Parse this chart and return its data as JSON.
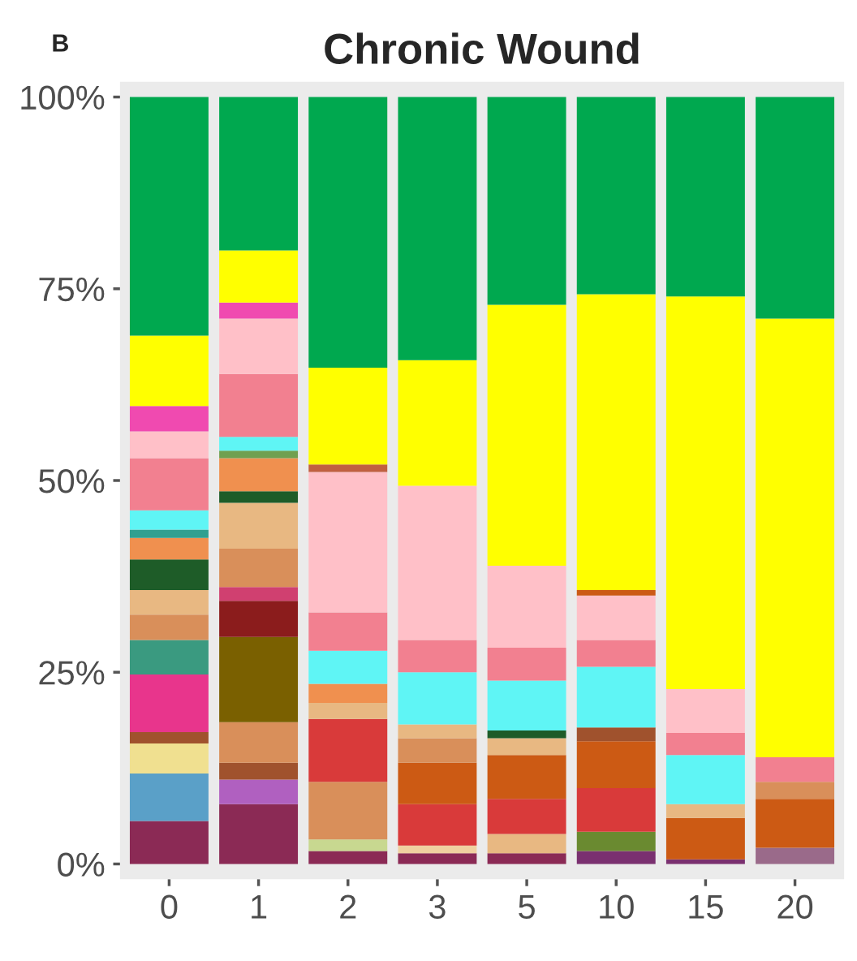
{
  "chart_data": {
    "type": "bar",
    "stacked": true,
    "title": "Chronic Wound",
    "annotations": [
      "B"
    ],
    "categories": [
      "0",
      "1",
      "2",
      "3",
      "5",
      "10",
      "15",
      "20"
    ],
    "ylim": [
      -2,
      102
    ],
    "yticks": [
      {
        "value": 0,
        "label": "0%"
      },
      {
        "value": 25,
        "label": "25%"
      },
      {
        "value": 50,
        "label": "50%"
      },
      {
        "value": 75,
        "label": "75%"
      },
      {
        "value": 100,
        "label": "100%"
      }
    ],
    "grid": false,
    "legend": false,
    "series": [
      {
        "values": [
          5.6,
          7.8,
          1.7,
          1.4,
          1.4,
          1.7,
          0.6,
          2.1
        ],
        "colors": [
          "#8b2a55",
          "#8b2a55",
          "#8b2a55",
          "#8b2a55",
          "#8b2a55",
          "#7a3070",
          "#7a3070",
          "#9a6a8a"
        ]
      },
      {
        "values": [
          6.2,
          3.2,
          1.5,
          1.0,
          2.5,
          2.5,
          5.4,
          6.4
        ],
        "colors": [
          "#5aa0c8",
          "#b060c0",
          "#c8d890",
          "#f0d0a0",
          "#e8b882",
          "#6a8a30",
          "#cc5a14",
          "#cc5a14"
        ]
      },
      {
        "values": [
          3.9,
          2.2,
          7.5,
          5.4,
          4.6,
          5.7,
          1.8,
          2.2
        ],
        "colors": [
          "#f0e090",
          "#a0522d",
          "#d98f5a",
          "#d93a3a",
          "#d93a3a",
          "#d93a3a",
          "#e8b882",
          "#d98f5a"
        ]
      },
      {
        "values": [
          1.5,
          5.3,
          8.2,
          5.4,
          5.7,
          6.1,
          6.4,
          3.2
        ],
        "colors": [
          "#a0522d",
          "#d98f5a",
          "#d93a3a",
          "#cc5a14",
          "#cc5a14",
          "#cc5a14",
          "#5ff5f5",
          "#f28090"
        ]
      },
      {
        "values": [
          7.5,
          11.1,
          2.1,
          3.2,
          2.2,
          1.8,
          2.9,
          57.2
        ],
        "colors": [
          "#e8358c",
          "#7a6000",
          "#e8b882",
          "#d98f5a",
          "#e8b882",
          "#a0522d",
          "#f28090",
          "#ffff00"
        ]
      },
      {
        "values": [
          4.5,
          4.7,
          2.5,
          1.8,
          1.0,
          7.9,
          5.7,
          28.9
        ],
        "colors": [
          "#3a9a80",
          "#8b1c1c",
          "#f0904f",
          "#e8b882",
          "#1e5c28",
          "#5ff5f5",
          "#ffc0c8",
          "#00a84f"
        ]
      },
      {
        "values": [
          3.3,
          1.8,
          4.3,
          6.8,
          6.5,
          3.5,
          51.2,
          null
        ],
        "colors": [
          "#d98f5a",
          "#d04070",
          "#5ff5f5",
          "#5ff5f5",
          "#5ff5f5",
          "#f28090",
          "#ffff00",
          null
        ]
      },
      {
        "values": [
          3.2,
          5.0,
          5.0,
          4.2,
          4.3,
          5.8,
          26.0,
          null
        ],
        "colors": [
          "#e8b882",
          "#d98f5a",
          "#f28090",
          "#f28090",
          "#f28090",
          "#ffc0c8",
          "#00a84f",
          null
        ]
      },
      {
        "values": [
          4.0,
          6.0,
          18.3,
          20.1,
          10.7,
          0.7,
          null,
          null
        ],
        "colors": [
          "#1e5c28",
          "#e8b882",
          "#ffc0c8",
          "#ffc0c8",
          "#ffc0c8",
          "#cc5a14",
          null,
          null
        ]
      },
      {
        "values": [
          2.8,
          1.5,
          1.0,
          16.4,
          34.0,
          38.6,
          null,
          null
        ],
        "colors": [
          "#f0904f",
          "#1e5c28",
          "#c06040",
          "#ffff00",
          "#ffff00",
          "#ffff00",
          null,
          null
        ]
      },
      {
        "values": [
          1.1,
          4.3,
          12.6,
          34.3,
          27.1,
          25.7,
          null,
          null
        ],
        "colors": [
          "#30a090",
          "#f0904f",
          "#ffff00",
          "#00a84f",
          "#00a84f",
          "#00a84f",
          null,
          null
        ]
      },
      {
        "values": [
          2.5,
          1.0,
          35.3,
          null,
          null,
          null,
          null,
          null
        ],
        "colors": [
          "#5ff5f5",
          "#70a050",
          "#00a84f",
          null,
          null,
          null,
          null,
          null
        ]
      },
      {
        "values": [
          6.8,
          1.8,
          null,
          null,
          null,
          null,
          null,
          null
        ],
        "colors": [
          "#f28090",
          "#5ff5f5",
          null,
          null,
          null,
          null,
          null,
          null
        ]
      },
      {
        "values": [
          3.5,
          8.2,
          null,
          null,
          null,
          null,
          null,
          null
        ],
        "colors": [
          "#ffc0c8",
          "#f28090",
          null,
          null,
          null,
          null,
          null,
          null
        ]
      },
      {
        "values": [
          3.3,
          7.2,
          null,
          null,
          null,
          null,
          null,
          null
        ],
        "colors": [
          "#f04ab0",
          "#ffc0c8",
          null,
          null,
          null,
          null,
          null,
          null
        ]
      },
      {
        "values": [
          9.2,
          2.1,
          null,
          null,
          null,
          null,
          null,
          null
        ],
        "colors": [
          "#ffff00",
          "#f04ab0",
          null,
          null,
          null,
          null,
          null,
          null
        ]
      },
      {
        "values": [
          31.1,
          6.8,
          null,
          null,
          null,
          null,
          null,
          null
        ],
        "colors": [
          "#00a84f",
          "#ffff00",
          null,
          null,
          null,
          null,
          null,
          null
        ]
      },
      {
        "values": [
          null,
          20.0,
          null,
          null,
          null,
          null,
          null,
          null
        ],
        "colors": [
          null,
          "#00a84f",
          null,
          null,
          null,
          null,
          null,
          null
        ]
      }
    ]
  }
}
